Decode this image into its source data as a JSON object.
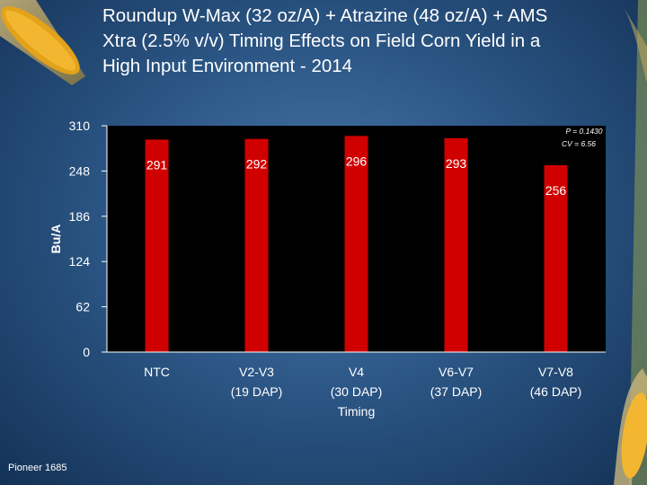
{
  "slide": {
    "title_lines": [
      "Roundup W-Max (32 oz/A) + Atrazine (48 oz/A) + AMS",
      "Xtra (2.5% v/v) Timing Effects on Field Corn Yield in a",
      "High Input Environment - 2014"
    ],
    "footer": "Pioneer 1685"
  },
  "chart_data": {
    "type": "bar",
    "title": "Roundup W-Max (32 oz/A) + Atrazine (48 oz/A) + AMS Xtra (2.5% v/v) Timing Effects on Field Corn Yield in a High Input Environment - 2014",
    "categories": [
      [
        "NTC"
      ],
      [
        "V2-V3",
        "(19 DAP)"
      ],
      [
        "V4",
        "(30 DAP)"
      ],
      [
        "V6-V7",
        "(37 DAP)"
      ],
      [
        "V7-V8",
        "(46 DAP)"
      ]
    ],
    "values": [
      291,
      292,
      296,
      293,
      256
    ],
    "value_labels": [
      "291",
      "292",
      "296",
      "293",
      "256"
    ],
    "xlabel": "Timing",
    "ylabel": "Bu/A",
    "ylim": [
      0,
      310
    ],
    "yticks": [
      0,
      62,
      124,
      186,
      248,
      310
    ],
    "annotations": [
      "P = 0.1430",
      "CV = 6.56"
    ],
    "grid": false,
    "legend": "none",
    "colors": {
      "bar": "#d10000",
      "plot_background": "#000000",
      "text": "#ffffff"
    }
  }
}
